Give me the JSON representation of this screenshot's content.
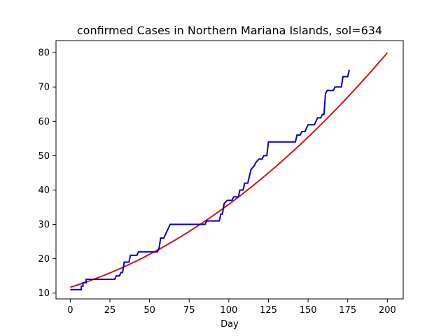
{
  "chart_data": {
    "type": "line",
    "title": "confirmed Cases in Northern Mariana Islands, sol=634",
    "xlabel": "Day",
    "ylabel": "",
    "xlim": [
      -9,
      210
    ],
    "ylim": [
      8.3,
      83.5
    ],
    "x_ticks": [
      0,
      25,
      50,
      75,
      100,
      125,
      150,
      175,
      200
    ],
    "y_ticks": [
      10,
      20,
      30,
      40,
      50,
      60,
      70,
      80
    ],
    "grid": false,
    "legend": "none",
    "series": [
      {
        "color": "#0000cc",
        "kind": "step",
        "points": [
          [
            0,
            11
          ],
          [
            7,
            11
          ],
          [
            7,
            12
          ],
          [
            8,
            12
          ],
          [
            8,
            13
          ],
          [
            10,
            13
          ],
          [
            10,
            14
          ],
          [
            26,
            14
          ],
          [
            28,
            14
          ],
          [
            29,
            15
          ],
          [
            31,
            15
          ],
          [
            32,
            16
          ],
          [
            33,
            16
          ],
          [
            34,
            19
          ],
          [
            37,
            19
          ],
          [
            38,
            21
          ],
          [
            42,
            21
          ],
          [
            43,
            22
          ],
          [
            55,
            22
          ],
          [
            56,
            23
          ],
          [
            57,
            26
          ],
          [
            59,
            26
          ],
          [
            61,
            28
          ],
          [
            63,
            30
          ],
          [
            85,
            30
          ],
          [
            86,
            31
          ],
          [
            94,
            31
          ],
          [
            95,
            33
          ],
          [
            96,
            33
          ],
          [
            97,
            36
          ],
          [
            99,
            37
          ],
          [
            102,
            37
          ],
          [
            103,
            38
          ],
          [
            106,
            38
          ],
          [
            107,
            40
          ],
          [
            109,
            40
          ],
          [
            110,
            42
          ],
          [
            112,
            42
          ],
          [
            113,
            44
          ],
          [
            114,
            46
          ],
          [
            116,
            47
          ],
          [
            117,
            48
          ],
          [
            119,
            49
          ],
          [
            121,
            49
          ],
          [
            122,
            50
          ],
          [
            124,
            50
          ],
          [
            125,
            54
          ],
          [
            142,
            54
          ],
          [
            143,
            56
          ],
          [
            145,
            56
          ],
          [
            146,
            57
          ],
          [
            148,
            57
          ],
          [
            149,
            58
          ],
          [
            150,
            59
          ],
          [
            154,
            59
          ],
          [
            155,
            60
          ],
          [
            156,
            61
          ],
          [
            158,
            61
          ],
          [
            159,
            62
          ],
          [
            160,
            62
          ],
          [
            161,
            68
          ],
          [
            162,
            69
          ],
          [
            166,
            69
          ],
          [
            167,
            70
          ],
          [
            171,
            70
          ],
          [
            172,
            73
          ],
          [
            175,
            73
          ],
          [
            176,
            75
          ]
        ]
      },
      {
        "color": "#dd1111",
        "kind": "curve",
        "quadratic": [
          11.7,
          0.1415,
          0.000999
        ],
        "domain": [
          0,
          200
        ]
      }
    ]
  }
}
